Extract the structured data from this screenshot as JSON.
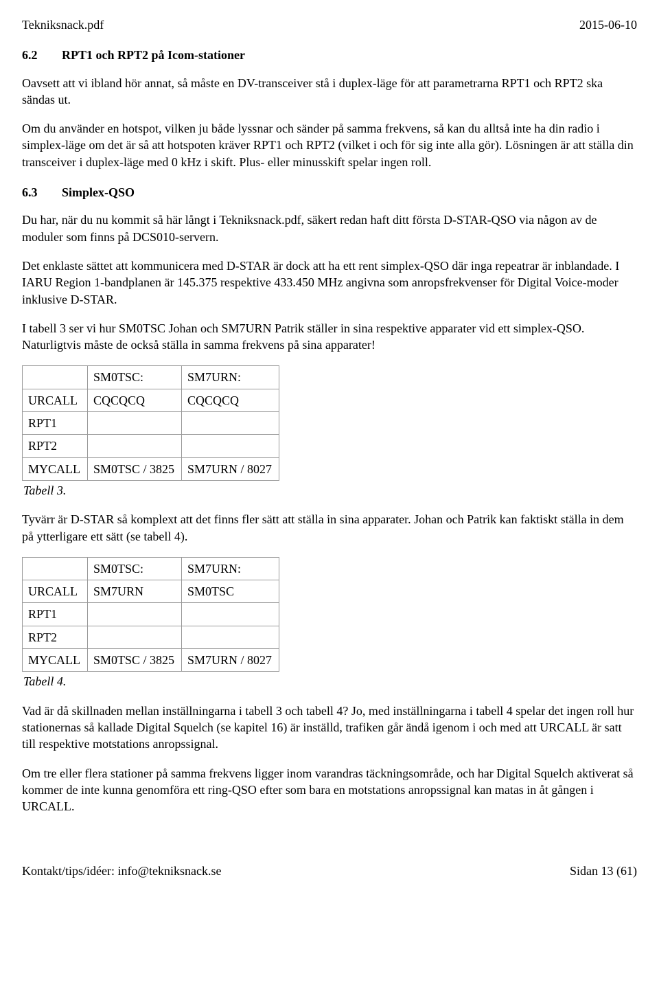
{
  "header": {
    "left": "Tekniksnack.pdf",
    "right": "2015-06-10"
  },
  "section62": {
    "num": "6.2",
    "title": "RPT1 och RPT2 på Icom-stationer",
    "p1": "Oavsett att vi ibland hör annat, så måste en DV-transceiver stå i duplex-läge för att parametrarna RPT1 och RPT2 ska sändas ut.",
    "p2": "Om du använder en hotspot, vilken ju både lyssnar och sänder på samma frekvens, så kan du alltså inte ha din radio i simplex-läge om det är så att hotspoten kräver RPT1 och RPT2 (vilket i och för sig inte alla gör). Lösningen är att ställa din transceiver i duplex-läge med 0 kHz i skift. Plus- eller minusskift spelar ingen roll."
  },
  "section63": {
    "num": "6.3",
    "title": "Simplex-QSO",
    "p1": "Du har, när du nu kommit så här långt i Tekniksnack.pdf, säkert redan haft ditt första D-STAR-QSO via någon av de moduler som finns på DCS010-servern.",
    "p2": "Det enklaste sättet att kommunicera med D-STAR är dock att ha ett rent simplex-QSO där inga repeatrar är inblandade. I IARU Region 1-bandplanen är 145.375 respektive 433.450 MHz angivna som anropsfrekvenser för Digital Voice-moder inklusive D-STAR.",
    "p3": "I tabell 3 ser vi hur SM0TSC Johan och SM7URN Patrik ställer in sina respektive apparater vid ett simplex-QSO. Naturligtvis måste de också ställa in samma frekvens på sina apparater!",
    "p4": "Tyvärr är D-STAR så komplext att det finns fler sätt att ställa in sina apparater. Johan och Patrik kan faktiskt ställa in dem på ytterligare ett sätt (se tabell 4).",
    "p5": "Vad är då skillnaden mellan inställningarna i tabell 3 och tabell 4? Jo, med inställningarna i tabell 4 spelar det ingen roll hur stationernas så kallade Digital Squelch (se kapitel 16) är inställd, trafiken går ändå igenom i och med att URCALL är satt till respektive motstations anropssignal.",
    "p6": "Om tre eller flera stationer på samma frekvens ligger inom varandras täckningsområde, och har Digital Squelch aktiverat så kommer de inte kunna genomföra ett ring-QSO efter som bara en motstations anropssignal kan matas in åt gången i URCALL."
  },
  "table3": {
    "caption": "Tabell 3.",
    "col1_header": "SM0TSC:",
    "col2_header": "SM7URN:",
    "rows": {
      "urcall_label": "URCALL",
      "urcall_c1": "CQCQCQ",
      "urcall_c2": "CQCQCQ",
      "rpt1_label": "RPT1",
      "rpt2_label": "RPT2",
      "mycall_label": "MYCALL",
      "mycall_c1": "SM0TSC / 3825",
      "mycall_c2": "SM7URN / 8027"
    }
  },
  "table4": {
    "caption": "Tabell 4.",
    "col1_header": "SM0TSC:",
    "col2_header": "SM7URN:",
    "rows": {
      "urcall_label": "URCALL",
      "urcall_c1": "SM7URN",
      "urcall_c2": "SM0TSC",
      "rpt1_label": "RPT1",
      "rpt2_label": "RPT2",
      "mycall_label": "MYCALL",
      "mycall_c1": "SM0TSC / 3825",
      "mycall_c2": "SM7URN / 8027"
    }
  },
  "footer": {
    "left": "Kontakt/tips/idéer: info@tekniksnack.se",
    "right": "Sidan 13 (61)"
  }
}
